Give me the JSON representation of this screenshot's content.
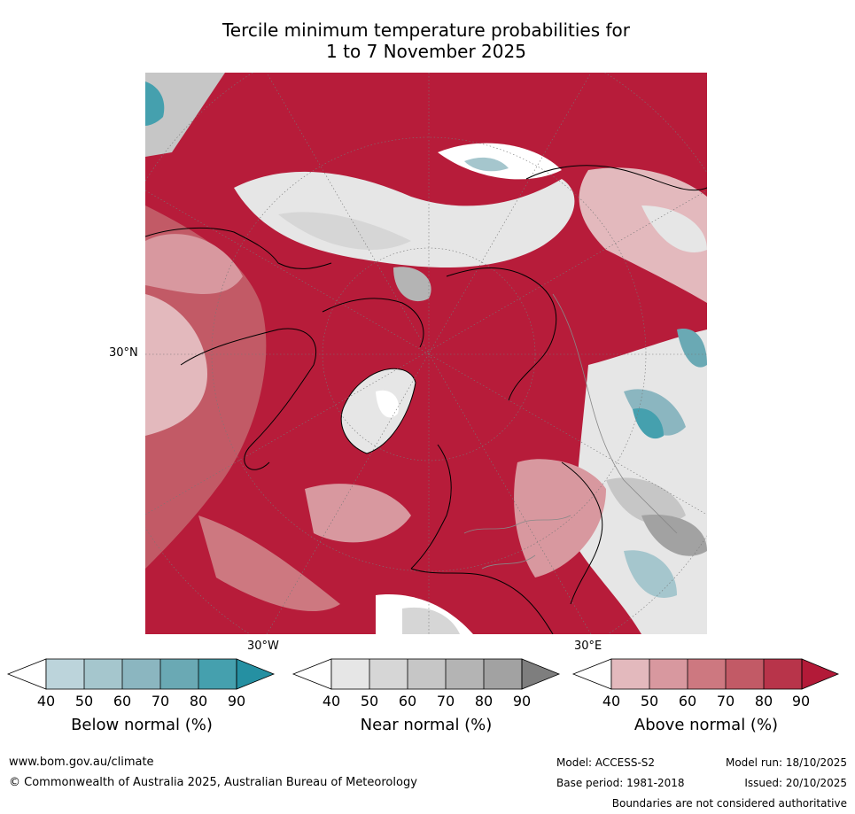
{
  "title_line1": "Tercile minimum temperature probabilities for",
  "title_line2": "1 to 7 November 2025",
  "map": {
    "labels": {
      "lat_30n": "30°N",
      "lon_30w": "30°W",
      "lon_30e": "30°E"
    }
  },
  "colorbars": [
    {
      "title": "Below normal (%)",
      "ticks": [
        "40",
        "50",
        "60",
        "70",
        "80",
        "90"
      ],
      "colors": [
        "#bcd4db",
        "#a5c6cd",
        "#8bb6c0",
        "#6aa9b4",
        "#45a0ae",
        "#2590a2"
      ]
    },
    {
      "title": "Near normal (%)",
      "ticks": [
        "40",
        "50",
        "60",
        "70",
        "80",
        "90"
      ],
      "colors": [
        "#e6e6e6",
        "#d6d6d6",
        "#c6c6c6",
        "#b4b4b4",
        "#a2a2a2",
        "#7e7e7e"
      ]
    },
    {
      "title": "Above normal (%)",
      "ticks": [
        "40",
        "50",
        "60",
        "70",
        "80",
        "90"
      ],
      "colors": [
        "#e3b9bd",
        "#d8989f",
        "#cd7880",
        "#c25a66",
        "#b8344a",
        "#b31a38"
      ]
    }
  ],
  "footer": {
    "url": "www.bom.gov.au/climate",
    "copyright": "© Commonwealth of Australia 2025, Australian Bureau of Meteorology",
    "model": "Model: ACCESS-S2",
    "model_run": "Model run: 18/10/2025",
    "base_period": "Base period: 1981-2018",
    "issued": "Issued: 20/10/2025",
    "disclaimer": "Boundaries are not considered authoritative"
  }
}
